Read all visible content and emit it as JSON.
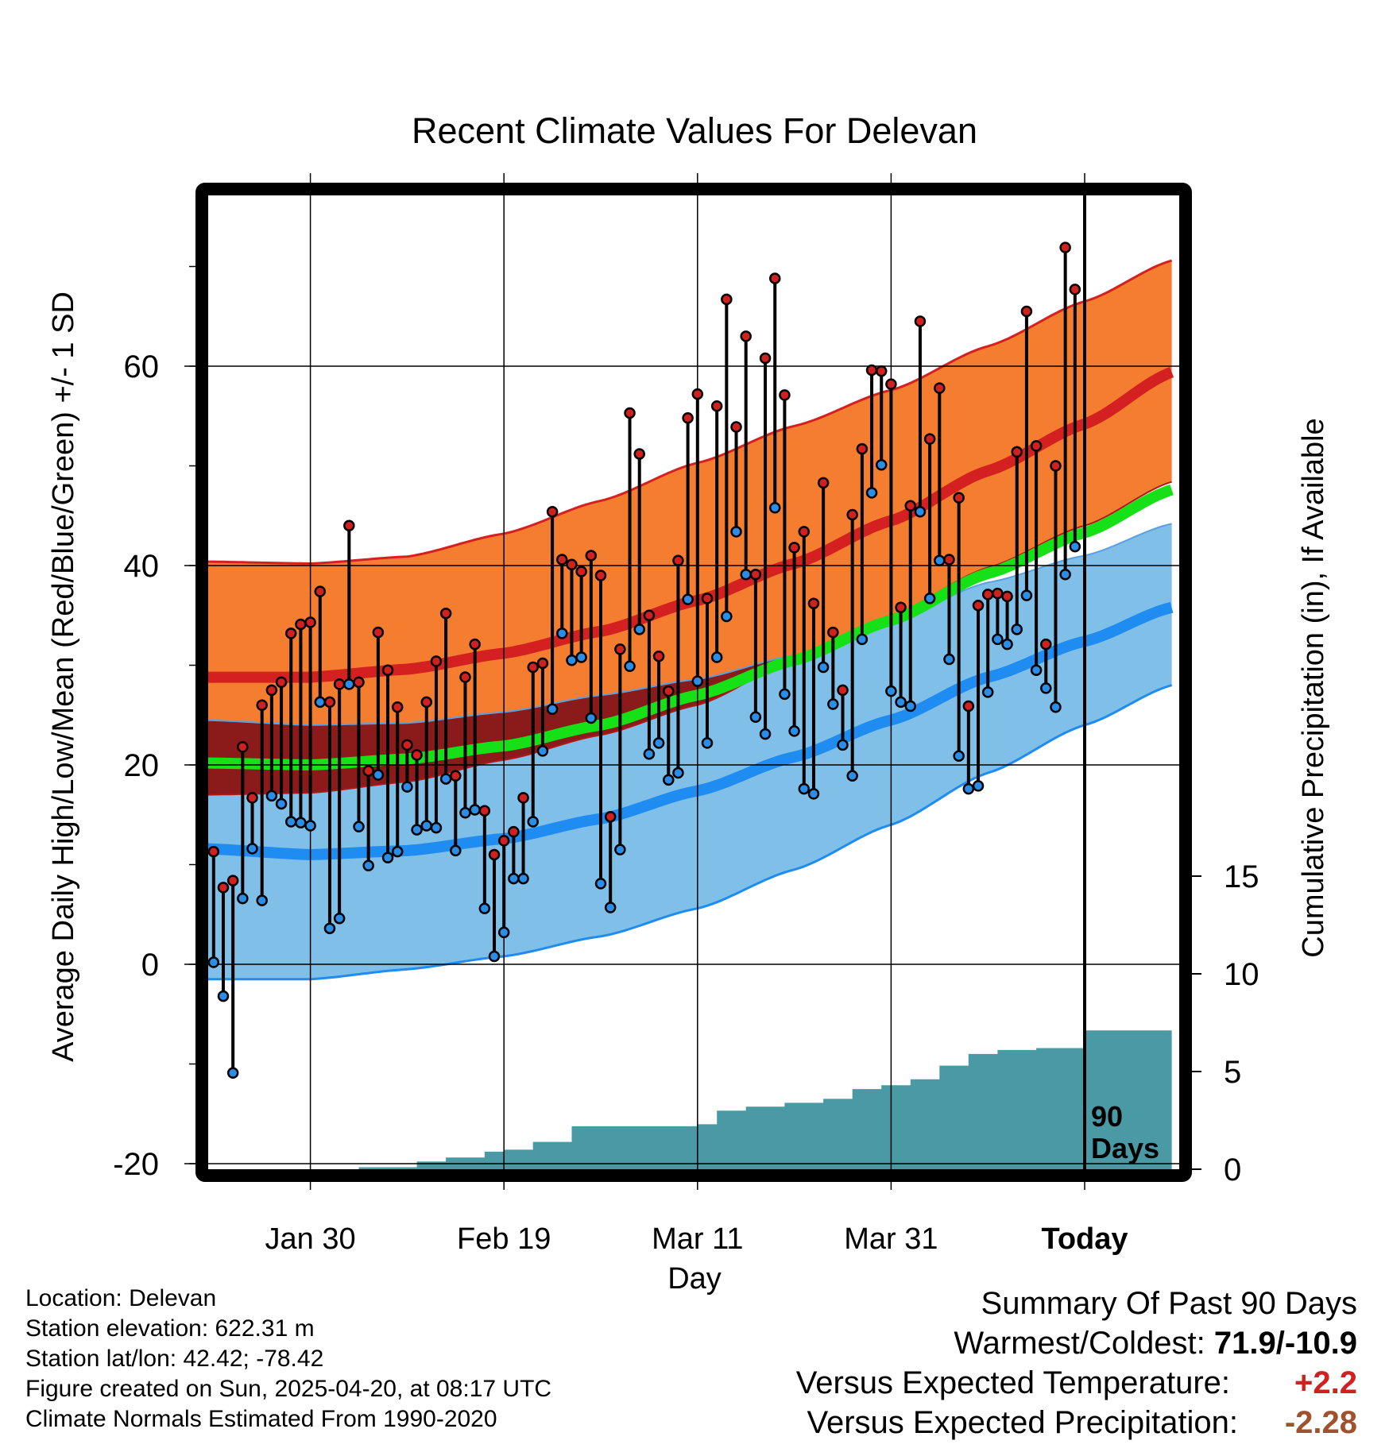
{
  "chart_data": {
    "type": "line",
    "title": "Recent Climate Values For Delevan",
    "xlabel": "Day",
    "ylabel": "Average Daily High/Low/Mean (Red/Blue/Green) +/- 1 SD",
    "y2label": "Cumulative Precipitation (in), If Available",
    "x_range_days": [
      -91,
      10
    ],
    "ylim": [
      -20,
      77
    ],
    "y2lim": [
      0,
      29
    ],
    "x_ticks": [
      {
        "day": -80,
        "label": "Jan 30"
      },
      {
        "day": -60,
        "label": "Feb 19"
      },
      {
        "day": -40,
        "label": "Mar 11"
      },
      {
        "day": -20,
        "label": "Mar 31"
      },
      {
        "day": 0,
        "label": "Today"
      }
    ],
    "y_ticks": [
      "-20",
      "0",
      "20",
      "40",
      "60"
    ],
    "y2_ticks": [
      "0",
      "5",
      "10",
      "15"
    ],
    "grid": true,
    "today_marker": {
      "day": 0,
      "label_line1": "90",
      "label_line2": "Days"
    },
    "normals": {
      "high_mean": [
        [
          -91,
          28.8
        ],
        [
          -80,
          28.8
        ],
        [
          -70,
          29.6
        ],
        [
          -60,
          31.2
        ],
        [
          -50,
          33.4
        ],
        [
          -40,
          36.5
        ],
        [
          -30,
          40.2
        ],
        [
          -20,
          44.5
        ],
        [
          -10,
          49.5
        ],
        [
          0,
          54.2
        ],
        [
          9,
          59.4
        ]
      ],
      "high_upper": [
        [
          -91,
          40.4
        ],
        [
          -80,
          40.2
        ],
        [
          -70,
          40.9
        ],
        [
          -60,
          43.2
        ],
        [
          -50,
          46.5
        ],
        [
          -40,
          50.3
        ],
        [
          -30,
          54.0
        ],
        [
          -20,
          57.6
        ],
        [
          -10,
          62.0
        ],
        [
          0,
          66.5
        ],
        [
          9,
          70.6
        ]
      ],
      "high_lower": [
        [
          -91,
          17.0
        ],
        [
          -80,
          17.2
        ],
        [
          -70,
          18.3
        ],
        [
          -60,
          20.5
        ],
        [
          -50,
          23.0
        ],
        [
          -40,
          26.0
        ],
        [
          -30,
          30.5
        ],
        [
          -20,
          35.0
        ],
        [
          -10,
          39.8
        ],
        [
          0,
          44.0
        ],
        [
          9,
          48.4
        ]
      ],
      "low_mean": [
        [
          -91,
          11.6
        ],
        [
          -80,
          11.0
        ],
        [
          -70,
          11.4
        ],
        [
          -60,
          12.6
        ],
        [
          -50,
          14.6
        ],
        [
          -40,
          17.4
        ],
        [
          -30,
          20.8
        ],
        [
          -20,
          24.5
        ],
        [
          -10,
          28.8
        ],
        [
          0,
          32.4
        ],
        [
          9,
          35.8
        ]
      ],
      "low_upper": [
        [
          -91,
          24.5
        ],
        [
          -80,
          24.0
        ],
        [
          -70,
          24.2
        ],
        [
          -60,
          25.3
        ],
        [
          -50,
          27.0
        ],
        [
          -40,
          28.6
        ],
        [
          -30,
          31.0
        ],
        [
          -20,
          34.5
        ],
        [
          -10,
          38.3
        ],
        [
          0,
          41.0
        ],
        [
          9,
          44.2
        ]
      ],
      "low_lower": [
        [
          -91,
          -1.5
        ],
        [
          -80,
          -1.5
        ],
        [
          -70,
          -0.5
        ],
        [
          -60,
          0.8
        ],
        [
          -50,
          2.8
        ],
        [
          -40,
          5.6
        ],
        [
          -30,
          9.5
        ],
        [
          -20,
          14.0
        ],
        [
          -10,
          19.2
        ],
        [
          0,
          24.0
        ],
        [
          9,
          28.0
        ]
      ],
      "avg_mean": [
        [
          -91,
          20.2
        ],
        [
          -80,
          20.0
        ],
        [
          -70,
          20.6
        ],
        [
          -60,
          21.9
        ],
        [
          -50,
          24.0
        ],
        [
          -40,
          27.0
        ],
        [
          -30,
          30.5
        ],
        [
          -20,
          34.5
        ],
        [
          -10,
          39.2
        ],
        [
          0,
          43.3
        ],
        [
          9,
          47.6
        ]
      ]
    },
    "series": [
      {
        "name": "High",
        "color": "#d02020",
        "values": [
          11.3,
          7.7,
          8.4,
          21.8,
          16.7,
          26.0,
          27.5,
          28.3,
          33.2,
          34.1,
          34.3,
          37.4,
          26.3,
          28.1,
          44.0,
          28.3,
          19.4,
          33.3,
          29.5,
          25.8,
          22.0,
          21.0,
          26.3,
          30.4,
          35.2,
          18.9,
          28.8,
          32.1,
          15.4,
          11.0,
          12.4,
          13.3,
          16.7,
          29.8,
          30.2,
          45.4,
          40.6,
          40.1,
          39.4,
          41.0,
          39.0,
          14.8,
          31.6,
          55.3,
          51.2,
          35.0,
          30.9,
          27.4,
          40.5,
          54.8,
          57.2,
          36.7,
          56.0,
          66.7,
          53.9,
          63.0,
          39.1,
          60.8,
          68.8,
          57.1,
          41.8,
          43.4,
          36.2,
          48.3,
          33.3,
          27.5,
          45.1,
          51.7,
          59.6,
          59.5,
          58.2,
          35.8,
          46.0,
          64.5,
          52.7,
          57.8,
          40.6,
          46.8,
          25.9,
          36.0,
          37.1,
          37.2,
          36.9,
          51.4,
          65.5,
          52.0,
          32.1,
          50.0,
          71.9,
          67.7
        ]
      },
      {
        "name": "Low",
        "color": "#2a8ee8",
        "values": [
          0.2,
          -3.2,
          -10.9,
          6.6,
          11.6,
          6.4,
          16.9,
          16.1,
          14.3,
          14.2,
          13.9,
          26.3,
          3.6,
          4.6,
          28.1,
          13.8,
          9.9,
          19.0,
          10.7,
          11.3,
          17.8,
          13.5,
          13.9,
          13.7,
          18.6,
          11.4,
          15.2,
          15.5,
          5.6,
          0.8,
          3.2,
          8.6,
          8.6,
          14.3,
          21.4,
          25.6,
          33.2,
          30.5,
          30.8,
          24.7,
          8.1,
          5.7,
          11.5,
          29.9,
          33.6,
          21.1,
          22.2,
          18.5,
          19.2,
          36.6,
          28.4,
          22.2,
          30.8,
          34.9,
          43.4,
          39.1,
          24.8,
          23.1,
          45.8,
          27.1,
          23.4,
          17.6,
          17.1,
          29.8,
          26.1,
          22.0,
          18.9,
          32.6,
          47.3,
          50.1,
          27.4,
          26.3,
          25.9,
          45.4,
          36.7,
          40.5,
          30.6,
          20.9,
          17.6,
          17.9,
          27.3,
          32.6,
          32.1,
          33.6,
          37.0,
          29.5,
          27.7,
          25.8,
          39.1,
          41.9
        ]
      }
    ],
    "precipitation": [
      [
        -91,
        0
      ],
      [
        -78,
        0
      ],
      [
        -75,
        0.1
      ],
      [
        -72,
        0.1
      ],
      [
        -69,
        0.4
      ],
      [
        -66,
        0.6
      ],
      [
        -62,
        0.9
      ],
      [
        -60,
        1.0
      ],
      [
        -57,
        1.4
      ],
      [
        -53,
        2.2
      ],
      [
        -45,
        2.2
      ],
      [
        -40,
        2.3
      ],
      [
        -38,
        3.0
      ],
      [
        -35,
        3.2
      ],
      [
        -31,
        3.4
      ],
      [
        -27,
        3.6
      ],
      [
        -24,
        4.1
      ],
      [
        -21,
        4.3
      ],
      [
        -18,
        4.6
      ],
      [
        -15,
        5.3
      ],
      [
        -12,
        5.9
      ],
      [
        -9,
        6.1
      ],
      [
        -5,
        6.2
      ],
      [
        -2,
        6.2
      ],
      [
        0,
        7.1
      ],
      [
        9,
        7.1
      ]
    ]
  },
  "station": {
    "location": "Location: Delevan",
    "elevation": "Station elevation: 622.31 m",
    "latlon": "Station lat/lon: 42.42; -78.42",
    "created": "Figure created on Sun, 2025-04-20, at 08:17 UTC",
    "normals_source": "Climate Normals Estimated From 1990-2020"
  },
  "summary": {
    "heading": "Summary Of Past 90 Days",
    "warm_cold_label": "Warmest/Coldest:",
    "warm_cold_value": "71.9/-10.9",
    "temp_label": "Versus Expected Temperature:",
    "temp_value": "+2.2",
    "temp_color": "#d02020",
    "precip_label": "Versus Expected Precipitation:",
    "precip_value": "-2.28",
    "precip_color": "#a0522d"
  },
  "colors": {
    "high_band": "#f47d30",
    "high_line": "#d42020",
    "overlap": "#8b1a1a",
    "low_band": "#7fbfe8",
    "low_line": "#1e8cf0",
    "avg_line": "#16e016",
    "precip_fill": "#4a9aa5"
  }
}
